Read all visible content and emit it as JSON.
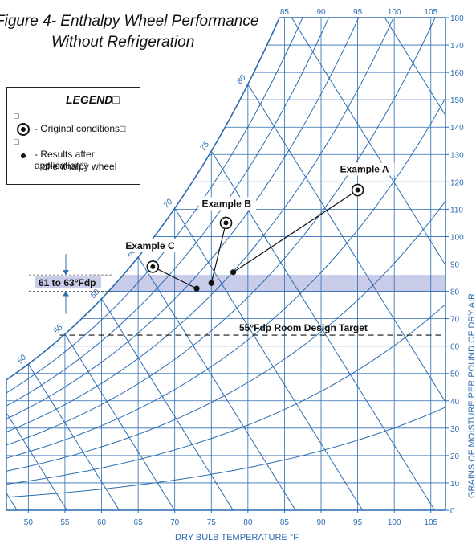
{
  "title_line1": "Figure 4- Enthalpy Wheel Performance",
  "title_line2": "Without Refrigeration",
  "legend": {
    "title": "LEGEND",
    "box_char": "□",
    "original_label": "- Original conditions",
    "results_label_1": "- Results after application",
    "results_label_2": "of enthalpy wheel"
  },
  "chart_data": {
    "type": "scatter",
    "xlabel": "DRY BULB TEMPERATURE °F",
    "ylabel": "GRAINS OF MOISTURE PER POUND OF DRY AIR",
    "xlim": [
      47,
      107
    ],
    "ylim": [
      0,
      180
    ],
    "x_ticks": [
      50,
      55,
      60,
      65,
      70,
      75,
      80,
      85,
      90,
      95,
      100,
      105
    ],
    "y_ticks": [
      0,
      10,
      20,
      30,
      40,
      50,
      60,
      70,
      80,
      90,
      100,
      110,
      120,
      130,
      140,
      150,
      160,
      170,
      180
    ],
    "saturation_ticks": [
      85,
      90,
      95,
      100,
      105
    ],
    "wetbulb_labels": [
      50,
      55,
      60,
      65,
      70,
      75,
      80
    ],
    "grid": true,
    "examples": [
      {
        "name": "Example A",
        "original": [
          95,
          117
        ],
        "result": [
          78,
          87
        ]
      },
      {
        "name": "Example B",
        "original": [
          77,
          105
        ],
        "result": [
          75,
          83
        ]
      },
      {
        "name": "Example C",
        "original": [
          67,
          89
        ],
        "result": [
          73,
          81
        ]
      }
    ],
    "band": {
      "label": "61 to 63°Fdp",
      "y_range": [
        80,
        86
      ]
    },
    "target": {
      "label": "55°Fdp Room Design Target",
      "y": 64
    },
    "colors": {
      "grid": "#2b6cb0",
      "band": "#c9cce8",
      "marks": "#111111"
    }
  }
}
